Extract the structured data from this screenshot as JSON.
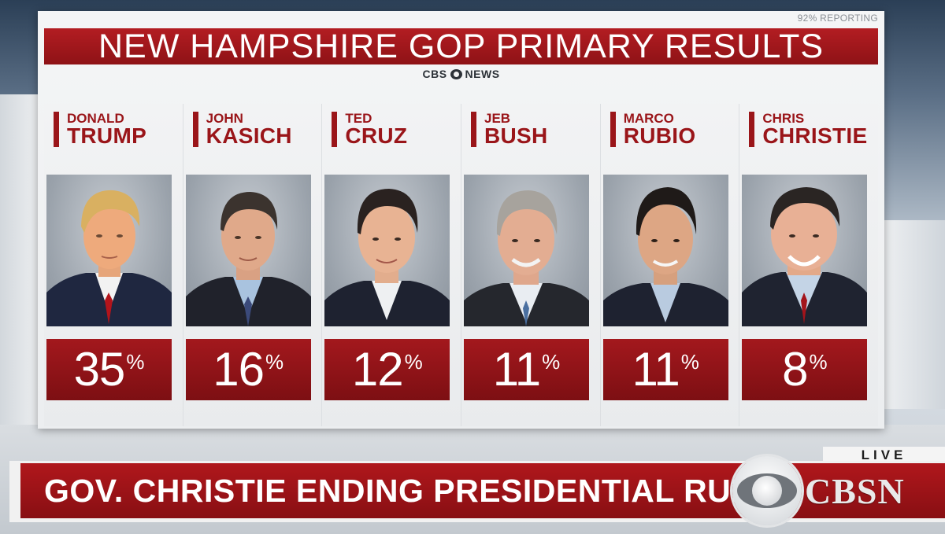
{
  "graphic": {
    "reporting": "92% REPORTING",
    "title": "NEW HAMPSHIRE GOP PRIMARY RESULTS",
    "network": "CBS NEWS",
    "network_parts": [
      "CBS",
      "NEWS"
    ]
  },
  "candidates": [
    {
      "first": "DONALD",
      "last": "TRUMP",
      "percent": "35",
      "sign": "%"
    },
    {
      "first": "JOHN",
      "last": "KASICH",
      "percent": "16",
      "sign": "%"
    },
    {
      "first": "TED",
      "last": "CRUZ",
      "percent": "12",
      "sign": "%"
    },
    {
      "first": "JEB",
      "last": "BUSH",
      "percent": "11",
      "sign": "%"
    },
    {
      "first": "MARCO",
      "last": "RUBIO",
      "percent": "11",
      "sign": "%"
    },
    {
      "first": "CHRIS",
      "last": "CHRISTIE",
      "percent": "8",
      "sign": "%"
    }
  ],
  "lower_third": {
    "headline": "GOV. CHRISTIE ENDING PRESIDENTIAL RUN",
    "live_label": "LIVE",
    "brand": "CBSN"
  },
  "colors": {
    "accent_red": "#9a1519",
    "background": "#f2f3f4"
  }
}
